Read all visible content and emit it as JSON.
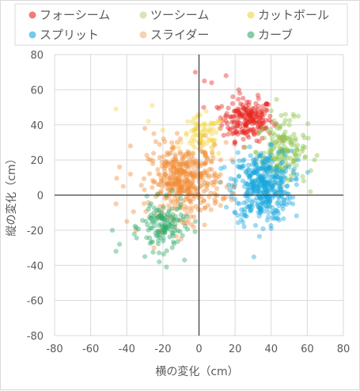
{
  "chart_data": {
    "type": "scatter",
    "xlabel": "横の変化（cm）",
    "ylabel": "縦の変化（cm）",
    "xlim": [
      -80,
      80
    ],
    "ylim": [
      -80,
      80
    ],
    "x_ticks": [
      "-80",
      "-60",
      "-40",
      "-20",
      "0",
      "20",
      "40",
      "60",
      "80"
    ],
    "y_ticks": [
      "80",
      "60",
      "40",
      "20",
      "0",
      "-20",
      "-40",
      "-60",
      "-80"
    ],
    "grid": true,
    "legend_position": "top",
    "series": [
      {
        "name": "フォーシーム",
        "color": "#e8231c",
        "center": [
          27,
          43
        ],
        "spread": [
          7,
          6
        ],
        "count": 200,
        "outliers": [
          [
            -2,
            70
          ],
          [
            3,
            65
          ],
          [
            7,
            64
          ],
          [
            15,
            68
          ],
          [
            22,
            60
          ],
          [
            33,
            55
          ],
          [
            10,
            50
          ],
          [
            12,
            44
          ],
          [
            37,
            38
          ],
          [
            20,
            30
          ]
        ]
      },
      {
        "name": "ツーシーム",
        "color": "#8bc34a",
        "center": [
          46,
          25
        ],
        "spread": [
          7,
          9
        ],
        "count": 170,
        "outliers": [
          [
            62,
            14
          ],
          [
            64,
            20
          ],
          [
            58,
            8
          ],
          [
            55,
            45
          ],
          [
            40,
            48
          ],
          [
            50,
            40
          ]
        ]
      },
      {
        "name": "カットボール",
        "color": "#f2d43b",
        "center": [
          2,
          33
        ],
        "spread": [
          6,
          6
        ],
        "count": 80,
        "outliers": [
          [
            -46,
            49
          ],
          [
            -26,
            51
          ],
          [
            -28,
            42
          ],
          [
            -20,
            37
          ],
          [
            -10,
            30
          ]
        ]
      },
      {
        "name": "スプリット",
        "color": "#18a7dd",
        "center": [
          35,
          5
        ],
        "spread": [
          8,
          10
        ],
        "count": 400,
        "outliers": [
          [
            25,
            -18
          ],
          [
            40,
            -19
          ],
          [
            20,
            -10
          ],
          [
            52,
            -5
          ],
          [
            55,
            20
          ]
        ]
      },
      {
        "name": "スライダー",
        "color": "#f08c38",
        "center": [
          -8,
          8
        ],
        "spread": [
          10,
          10
        ],
        "count": 420,
        "outliers": [
          [
            -46,
            -5
          ],
          [
            -42,
            5
          ],
          [
            -44,
            16
          ],
          [
            -38,
            28
          ],
          [
            -30,
            38
          ],
          [
            -25,
            35
          ],
          [
            -40,
            -15
          ],
          [
            -35,
            -20
          ],
          [
            -10,
            -25
          ],
          [
            -25,
            -30
          ],
          [
            12,
            20
          ],
          [
            15,
            30
          ]
        ]
      },
      {
        "name": "カーブ",
        "color": "#2eaa6a",
        "center": [
          -20,
          -18
        ],
        "spread": [
          6,
          7
        ],
        "count": 130,
        "outliers": [
          [
            -48,
            -20
          ],
          [
            -44,
            -28
          ],
          [
            -46,
            -32
          ],
          [
            -30,
            -35
          ],
          [
            -18,
            -41
          ],
          [
            -8,
            -37
          ],
          [
            -28,
            -8
          ],
          [
            -12,
            -8
          ],
          [
            -22,
            -38
          ],
          [
            -2,
            -15
          ]
        ]
      }
    ]
  }
}
